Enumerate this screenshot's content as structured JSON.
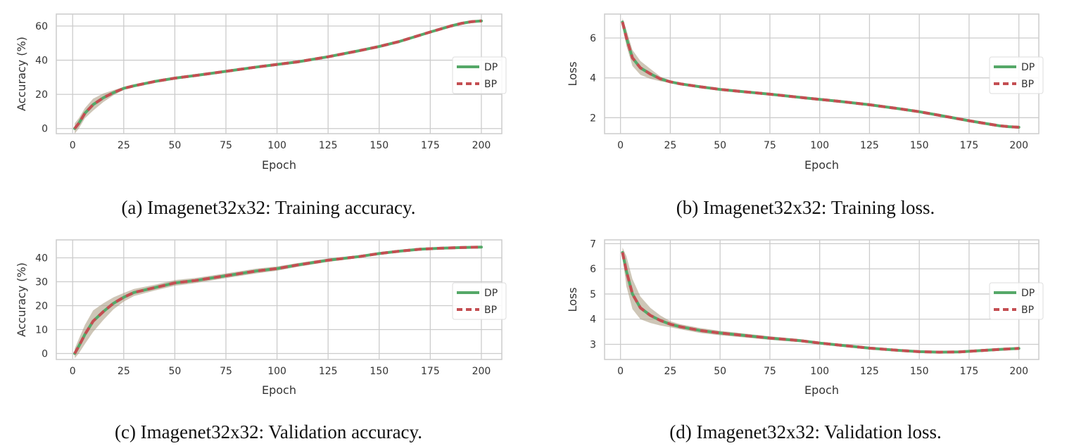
{
  "chart_data": [
    {
      "type": "line",
      "caption": "(a) Imagenet32x32: Training accuracy.",
      "xlabel": "Epoch",
      "ylabel": "Accuracy (%)",
      "xlim": [
        -8,
        210
      ],
      "ylim": [
        -3,
        67
      ],
      "xticks": [
        0,
        25,
        50,
        75,
        100,
        125,
        150,
        175,
        200
      ],
      "yticks": [
        0,
        20,
        40,
        60
      ],
      "grid": true,
      "legend": "center-right",
      "x": [
        1,
        3,
        6,
        10,
        15,
        20,
        25,
        30,
        40,
        50,
        60,
        75,
        90,
        100,
        110,
        125,
        140,
        150,
        160,
        175,
        185,
        190,
        195,
        200
      ],
      "series": [
        {
          "name": "DP",
          "values": [
            0,
            3,
            9,
            14,
            18,
            21,
            23.5,
            25,
            27.5,
            29.5,
            31,
            33.5,
            36,
            37.5,
            39,
            42,
            45.5,
            48,
            51,
            56.5,
            60,
            61.5,
            62.5,
            63
          ]
        },
        {
          "name": "BP",
          "values": [
            0,
            3,
            9,
            14,
            18,
            21,
            23.5,
            25,
            27.5,
            29.5,
            31,
            33.5,
            36,
            37.5,
            39,
            42,
            45.5,
            48,
            51,
            56.5,
            60,
            61.5,
            62.5,
            63
          ]
        }
      ],
      "band": [
        3,
        3,
        3,
        3.5,
        2.5,
        1.5,
        0.8,
        0.5,
        0.4,
        0.3,
        0.3,
        0.3,
        0.3,
        0.3,
        0.3,
        0.3,
        0.3,
        0.3,
        0.3,
        0.3,
        0.3,
        0.3,
        0.3,
        0.3
      ]
    },
    {
      "type": "line",
      "caption": "(b) Imagenet32x32: Training loss.",
      "xlabel": "Epoch",
      "ylabel": "Loss",
      "xlim": [
        -8,
        210
      ],
      "ylim": [
        1.2,
        7.2
      ],
      "xticks": [
        0,
        25,
        50,
        75,
        100,
        125,
        150,
        175,
        200
      ],
      "yticks": [
        2,
        4,
        6
      ],
      "grid": true,
      "legend": "center-right",
      "x": [
        1,
        3,
        6,
        10,
        15,
        20,
        25,
        30,
        40,
        50,
        60,
        75,
        90,
        100,
        110,
        125,
        140,
        150,
        160,
        175,
        185,
        190,
        195,
        200
      ],
      "series": [
        {
          "name": "DP",
          "values": [
            6.8,
            6.0,
            5.0,
            4.5,
            4.2,
            3.95,
            3.8,
            3.7,
            3.55,
            3.42,
            3.32,
            3.18,
            3.02,
            2.92,
            2.82,
            2.65,
            2.45,
            2.3,
            2.12,
            1.85,
            1.68,
            1.6,
            1.55,
            1.52
          ]
        },
        {
          "name": "BP",
          "values": [
            6.8,
            6.0,
            5.0,
            4.5,
            4.2,
            3.95,
            3.8,
            3.7,
            3.55,
            3.42,
            3.32,
            3.18,
            3.02,
            2.92,
            2.82,
            2.65,
            2.45,
            2.3,
            2.12,
            1.85,
            1.68,
            1.6,
            1.55,
            1.52
          ]
        }
      ],
      "band": [
        0.2,
        0.4,
        0.4,
        0.35,
        0.25,
        0.12,
        0.06,
        0.04,
        0.03,
        0.03,
        0.03,
        0.03,
        0.03,
        0.03,
        0.03,
        0.03,
        0.03,
        0.03,
        0.03,
        0.03,
        0.03,
        0.03,
        0.03,
        0.03
      ]
    },
    {
      "type": "line",
      "caption": "(c) Imagenet32x32: Validation accuracy.",
      "xlabel": "Epoch",
      "ylabel": "Accuracy (%)",
      "xlim": [
        -8,
        210
      ],
      "ylim": [
        -2.5,
        47.5
      ],
      "xticks": [
        0,
        25,
        50,
        75,
        100,
        125,
        150,
        175,
        200
      ],
      "yticks": [
        0,
        10,
        20,
        30,
        40
      ],
      "grid": true,
      "legend": "center-right",
      "x": [
        1,
        3,
        6,
        10,
        15,
        20,
        25,
        30,
        40,
        50,
        60,
        75,
        90,
        100,
        110,
        125,
        140,
        150,
        160,
        170,
        180,
        190,
        200
      ],
      "series": [
        {
          "name": "DP",
          "values": [
            0,
            3,
            8,
            13.5,
            17.5,
            21,
            23.5,
            25.5,
            27.5,
            29.5,
            30.5,
            32.5,
            34.5,
            35.5,
            37,
            39,
            40.5,
            41.8,
            42.8,
            43.6,
            44,
            44.3,
            44.5
          ]
        },
        {
          "name": "BP",
          "values": [
            0,
            3,
            8,
            13.5,
            17.5,
            21,
            23.5,
            25.5,
            27.5,
            29.5,
            30.5,
            32.5,
            34.5,
            35.5,
            37,
            39,
            40.5,
            41.8,
            42.8,
            43.6,
            44,
            44.3,
            44.5
          ]
        }
      ],
      "band": [
        2,
        3,
        4,
        4.5,
        3.5,
        2.5,
        1.8,
        1.5,
        1.2,
        1.2,
        1.1,
        1,
        1,
        0.9,
        0.8,
        0.7,
        0.6,
        0.5,
        0.4,
        0.4,
        0.3,
        0.3,
        0.3
      ]
    },
    {
      "type": "line",
      "caption": "(d) Imagenet32x32: Validation loss.",
      "xlabel": "Epoch",
      "ylabel": "Loss",
      "xlim": [
        -8,
        210
      ],
      "ylim": [
        2.4,
        7.15
      ],
      "xticks": [
        0,
        25,
        50,
        75,
        100,
        125,
        150,
        175,
        200
      ],
      "yticks": [
        3,
        4,
        5,
        6,
        7
      ],
      "grid": true,
      "legend": "center-right",
      "x": [
        1,
        3,
        6,
        10,
        15,
        20,
        25,
        30,
        40,
        50,
        60,
        75,
        90,
        100,
        110,
        125,
        140,
        150,
        160,
        170,
        180,
        190,
        200
      ],
      "series": [
        {
          "name": "DP",
          "values": [
            6.65,
            5.9,
            5.0,
            4.45,
            4.15,
            3.95,
            3.8,
            3.7,
            3.55,
            3.45,
            3.37,
            3.25,
            3.15,
            3.05,
            2.97,
            2.85,
            2.76,
            2.71,
            2.69,
            2.7,
            2.75,
            2.8,
            2.84
          ]
        },
        {
          "name": "BP",
          "values": [
            6.65,
            5.9,
            5.0,
            4.45,
            4.15,
            3.95,
            3.8,
            3.7,
            3.55,
            3.45,
            3.37,
            3.25,
            3.15,
            3.05,
            2.97,
            2.85,
            2.76,
            2.71,
            2.69,
            2.7,
            2.75,
            2.8,
            2.84
          ]
        }
      ],
      "band": [
        0.2,
        0.6,
        0.6,
        0.45,
        0.3,
        0.2,
        0.12,
        0.1,
        0.1,
        0.09,
        0.08,
        0.07,
        0.06,
        0.05,
        0.05,
        0.04,
        0.04,
        0.03,
        0.03,
        0.03,
        0.03,
        0.03,
        0.03
      ]
    }
  ],
  "colors": {
    "dp": "#55a868",
    "bp": "#c44e52",
    "band": "#a6977c",
    "grid": "#cccccc",
    "axes": "#cccccc"
  }
}
